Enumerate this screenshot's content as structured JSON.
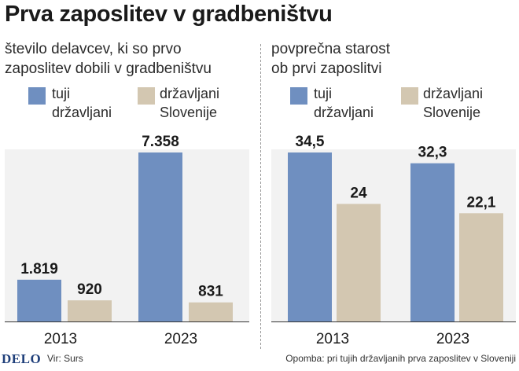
{
  "title": "Prva zaposlitev v gradbeništvu",
  "colors": {
    "foreign": "#6f8fc0",
    "slovene": "#d3c7b1"
  },
  "charts": [
    {
      "subtitle_line1": "število delavcev, ki so prvo",
      "subtitle_line2": "zaposlitev dobili v gradbeništvu",
      "legend": {
        "foreign_line1": "tuji",
        "foreign_line2": "državljani",
        "slovene_line1": "državljani",
        "slovene_line2": "Slovenije"
      }
    },
    {
      "subtitle_line1": "povprečna starost",
      "subtitle_line2": "ob prvi zaposlitvi",
      "legend": {
        "foreign_line1": "tuji",
        "foreign_line2": "državljani",
        "slovene_line1": "državljani",
        "slovene_line2": "Slovenije"
      }
    }
  ],
  "chart_data": [
    {
      "type": "bar",
      "categories": [
        "2013",
        "2023"
      ],
      "series": [
        {
          "name": "tuji državljani",
          "values": [
            1819,
            7358
          ],
          "labels": [
            "1.819",
            "7.358"
          ]
        },
        {
          "name": "državljani Slovenije",
          "values": [
            920,
            831
          ],
          "labels": [
            "920",
            "831"
          ]
        }
      ],
      "ylim": [
        0,
        7358
      ]
    },
    {
      "type": "bar",
      "categories": [
        "2013",
        "2023"
      ],
      "series": [
        {
          "name": "tuji državljani",
          "values": [
            34.5,
            32.3
          ],
          "labels": [
            "34,5",
            "32,3"
          ]
        },
        {
          "name": "državljani Slovenije",
          "values": [
            24,
            22.1
          ],
          "labels": [
            "24",
            "22,1"
          ]
        }
      ],
      "ylim": [
        0,
        34.5
      ]
    }
  ],
  "footer": {
    "logo": "DELO",
    "source": "Vir: Surs",
    "note": "Opomba: pri tujih državljanih prva zaposlitev v Sloveniji"
  }
}
